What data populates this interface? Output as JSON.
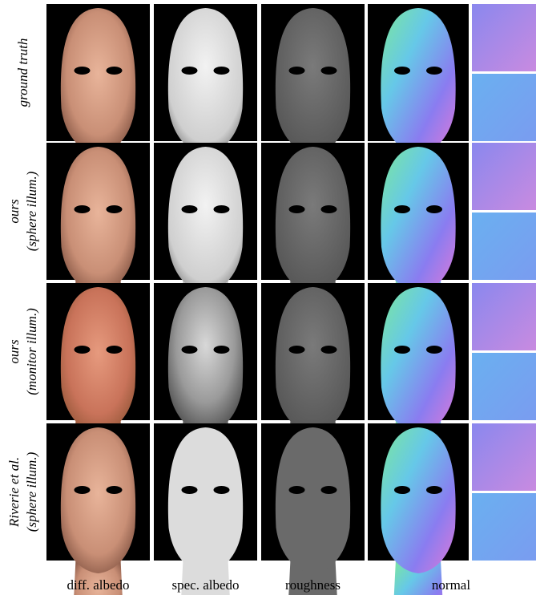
{
  "rows": [
    {
      "lines": [
        "ground truth"
      ]
    },
    {
      "lines": [
        "ours",
        "(sphere illum.)"
      ]
    },
    {
      "lines": [
        "ours",
        "(monitor illum.)"
      ]
    },
    {
      "lines": [
        "Riverie et al.",
        "(sphere illum.)"
      ]
    }
  ],
  "columns": [
    "diff. albedo",
    "spec. albedo",
    "roughness",
    "normal"
  ]
}
